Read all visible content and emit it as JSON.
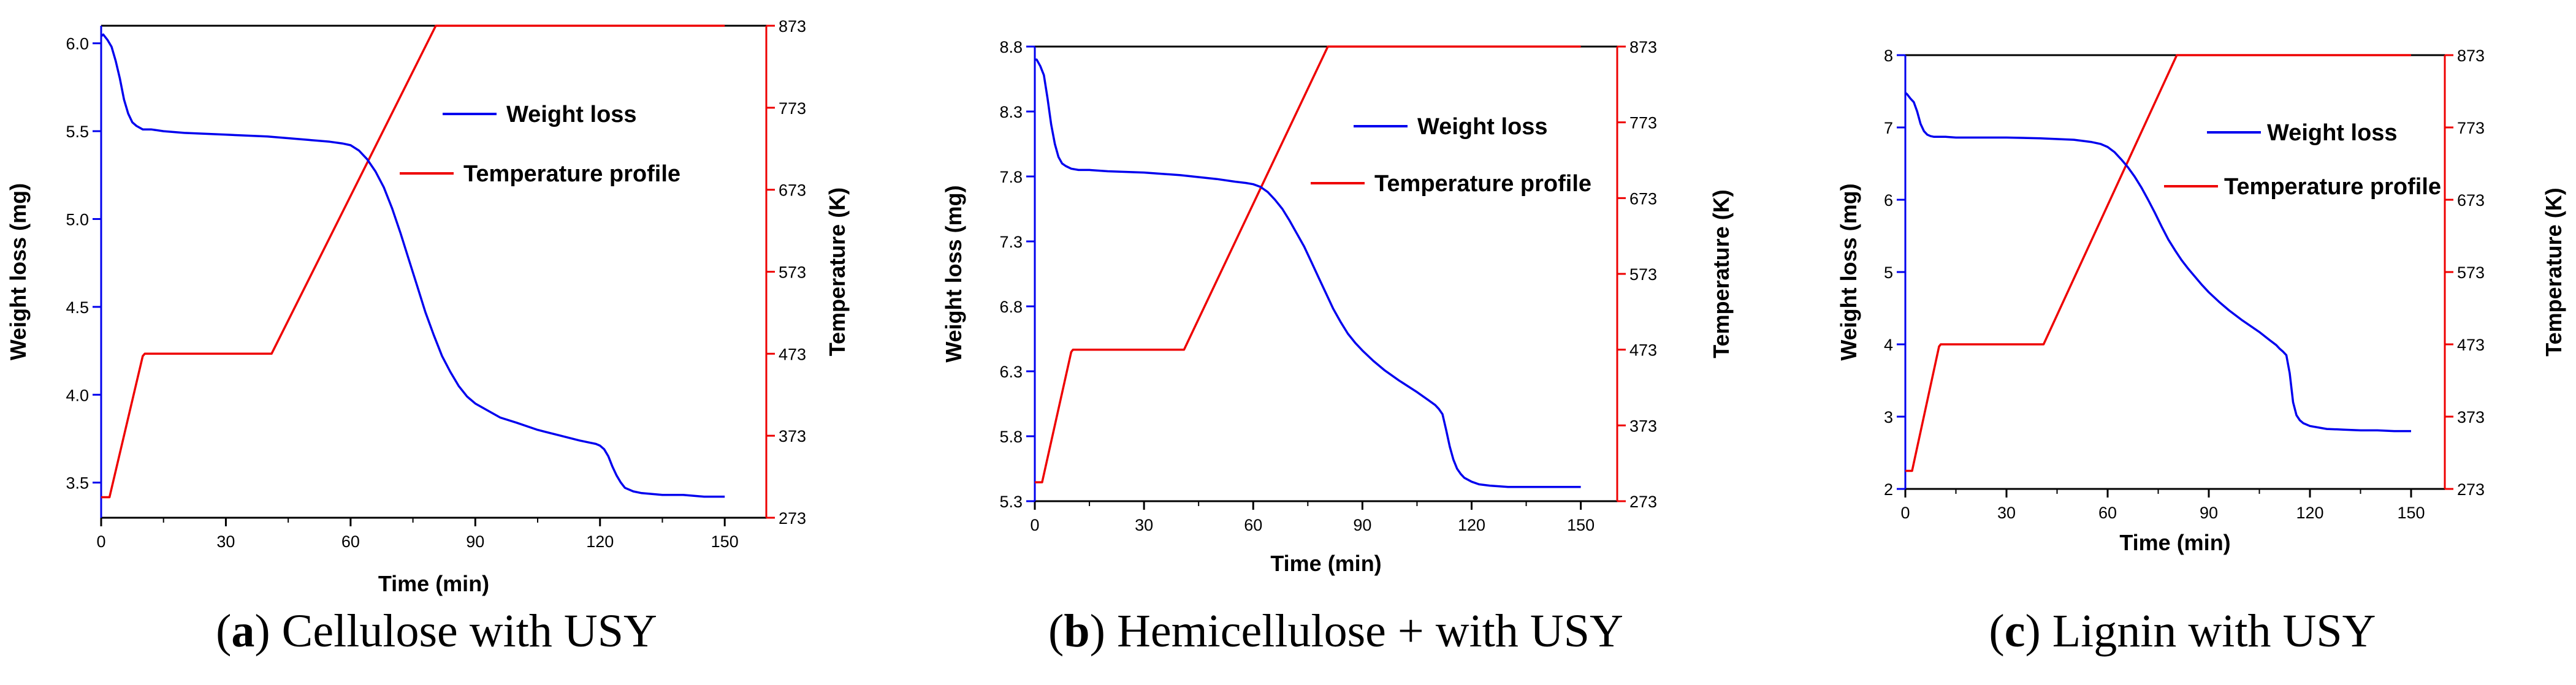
{
  "chart_data": [
    {
      "type": "line",
      "caption_prefix": "(",
      "caption_letter": "a",
      "caption_rest": ") Cellulose with USY",
      "xlabel": "Time (min)",
      "ylabel": "Weight loss (mg)",
      "y2label": "Temperature (K)",
      "xlim": [
        0,
        160
      ],
      "ylim": [
        3.3,
        6.1
      ],
      "y2lim": [
        273,
        873
      ],
      "xticks": [
        0,
        30,
        60,
        90,
        120,
        150
      ],
      "yticks": [
        3.5,
        4.0,
        4.5,
        5.0,
        5.5,
        6.0
      ],
      "y2ticks": [
        273,
        373,
        473,
        573,
        673,
        773,
        873
      ],
      "tick_decimals": 1,
      "legend": [
        "Weight loss",
        "Temperature profile"
      ],
      "colors": {
        "weight": "#0000ee",
        "temperature": "#ee0000"
      },
      "weight_loss": {
        "x": [
          0,
          0.5,
          1.5,
          2.5,
          3.5,
          4.5,
          5.5,
          6.5,
          7.5,
          8.5,
          10,
          12,
          15,
          20,
          30,
          40,
          50,
          55,
          58,
          60,
          62,
          64,
          66,
          68,
          70,
          72,
          74,
          76,
          78,
          80,
          82,
          84,
          86,
          88,
          90,
          93,
          96,
          100,
          105,
          110,
          115,
          117,
          119,
          120,
          121,
          122,
          123,
          124,
          125,
          126,
          128,
          130,
          135,
          140,
          145,
          150
        ],
        "y": [
          6.04,
          6.05,
          6.02,
          5.98,
          5.9,
          5.8,
          5.68,
          5.6,
          5.55,
          5.53,
          5.51,
          5.51,
          5.5,
          5.49,
          5.48,
          5.47,
          5.45,
          5.44,
          5.43,
          5.42,
          5.39,
          5.34,
          5.27,
          5.18,
          5.06,
          4.92,
          4.77,
          4.62,
          4.47,
          4.34,
          4.22,
          4.13,
          4.05,
          3.99,
          3.95,
          3.91,
          3.87,
          3.84,
          3.8,
          3.77,
          3.74,
          3.73,
          3.72,
          3.71,
          3.69,
          3.65,
          3.59,
          3.54,
          3.5,
          3.47,
          3.45,
          3.44,
          3.43,
          3.43,
          3.42,
          3.42
        ]
      },
      "temperature": {
        "x": [
          0,
          2,
          10,
          10.5,
          41,
          80.5,
          150
        ],
        "y": [
          298,
          298,
          470,
          473,
          473,
          873,
          873
        ]
      }
    },
    {
      "type": "line",
      "caption_prefix": "(",
      "caption_letter": "b",
      "caption_rest": ") Hemicellulose + with USY",
      "xlabel": "Time (min)",
      "ylabel": "Weight loss (mg)",
      "y2label": "Temperature (K)",
      "xlim": [
        0,
        160
      ],
      "ylim": [
        5.3,
        8.8
      ],
      "y2lim": [
        273,
        873
      ],
      "xticks": [
        0,
        30,
        60,
        90,
        120,
        150
      ],
      "yticks": [
        5.3,
        5.8,
        6.3,
        6.8,
        7.3,
        7.8,
        8.3,
        8.8
      ],
      "y2ticks": [
        273,
        373,
        473,
        573,
        673,
        773,
        873
      ],
      "tick_decimals": 1,
      "legend": [
        "Weight loss",
        "Temperature profile"
      ],
      "colors": {
        "weight": "#0000ee",
        "temperature": "#ee0000"
      },
      "weight_loss": {
        "x": [
          0,
          0.5,
          1.5,
          2.5,
          3.5,
          4.5,
          5.5,
          6.5,
          7.5,
          8.5,
          10,
          12,
          15,
          20,
          30,
          40,
          50,
          55,
          58,
          60,
          62,
          64,
          66,
          68,
          70,
          72,
          74,
          76,
          78,
          80,
          82,
          84,
          86,
          88,
          90,
          93,
          96,
          100,
          105,
          108,
          110,
          111,
          112,
          113,
          114,
          115,
          116,
          117,
          118,
          120,
          122,
          125,
          130,
          135,
          140,
          145,
          150
        ],
        "y": [
          8.7,
          8.7,
          8.65,
          8.58,
          8.4,
          8.2,
          8.05,
          7.95,
          7.9,
          7.88,
          7.86,
          7.85,
          7.85,
          7.84,
          7.83,
          7.81,
          7.78,
          7.76,
          7.75,
          7.74,
          7.72,
          7.68,
          7.62,
          7.55,
          7.46,
          7.36,
          7.26,
          7.14,
          7.02,
          6.9,
          6.78,
          6.68,
          6.59,
          6.52,
          6.46,
          6.38,
          6.31,
          6.23,
          6.14,
          6.08,
          6.04,
          6.01,
          5.97,
          5.85,
          5.72,
          5.62,
          5.55,
          5.51,
          5.48,
          5.45,
          5.43,
          5.42,
          5.41,
          5.41,
          5.41,
          5.41,
          5.41
        ]
      },
      "temperature": {
        "x": [
          0,
          2,
          10,
          10.5,
          41,
          80.5,
          150
        ],
        "y": [
          298,
          298,
          470,
          473,
          473,
          873,
          873
        ]
      }
    },
    {
      "type": "line",
      "caption_prefix": "(",
      "caption_letter": "c",
      "caption_rest": ") Lignin with USY",
      "xlabel": "Time (min)",
      "ylabel": "Weight loss (mg)",
      "y2label": "Temperature (K)",
      "xlim": [
        0,
        160
      ],
      "ylim": [
        2,
        8
      ],
      "y2lim": [
        273,
        873
      ],
      "xticks": [
        0,
        30,
        60,
        90,
        120,
        150
      ],
      "yticks": [
        2,
        3,
        4,
        5,
        6,
        7,
        8
      ],
      "y2ticks": [
        273,
        373,
        473,
        573,
        673,
        773,
        873
      ],
      "tick_decimals": 0,
      "legend": [
        "Weight loss",
        "Temperature profile"
      ],
      "colors": {
        "weight": "#0000ee",
        "temperature": "#ee0000"
      },
      "weight_loss": {
        "x": [
          0,
          0.5,
          1.5,
          2.5,
          3.5,
          4.5,
          5.5,
          6.5,
          7.5,
          8.5,
          10,
          12,
          15,
          20,
          30,
          40,
          50,
          55,
          58,
          60,
          62,
          64,
          66,
          68,
          70,
          72,
          74,
          76,
          78,
          80,
          82,
          84,
          86,
          88,
          90,
          93,
          96,
          100,
          105,
          108,
          110,
          111,
          112,
          113,
          114,
          115,
          116,
          117,
          118,
          120,
          125,
          130,
          135,
          140,
          145,
          150
        ],
        "y": [
          7.48,
          7.46,
          7.4,
          7.35,
          7.22,
          7.05,
          6.95,
          6.9,
          6.88,
          6.87,
          6.87,
          6.87,
          6.86,
          6.86,
          6.86,
          6.85,
          6.83,
          6.8,
          6.77,
          6.73,
          6.66,
          6.56,
          6.45,
          6.32,
          6.17,
          6.0,
          5.82,
          5.63,
          5.45,
          5.3,
          5.16,
          5.04,
          4.93,
          4.82,
          4.72,
          4.59,
          4.47,
          4.33,
          4.17,
          4.06,
          3.99,
          3.94,
          3.9,
          3.85,
          3.6,
          3.2,
          3.02,
          2.95,
          2.91,
          2.87,
          2.83,
          2.82,
          2.81,
          2.81,
          2.8,
          2.8
        ]
      },
      "temperature": {
        "x": [
          0,
          2,
          10,
          10.5,
          41,
          80.5,
          150
        ],
        "y": [
          298,
          298,
          470,
          473,
          473,
          873,
          873
        ]
      }
    }
  ]
}
